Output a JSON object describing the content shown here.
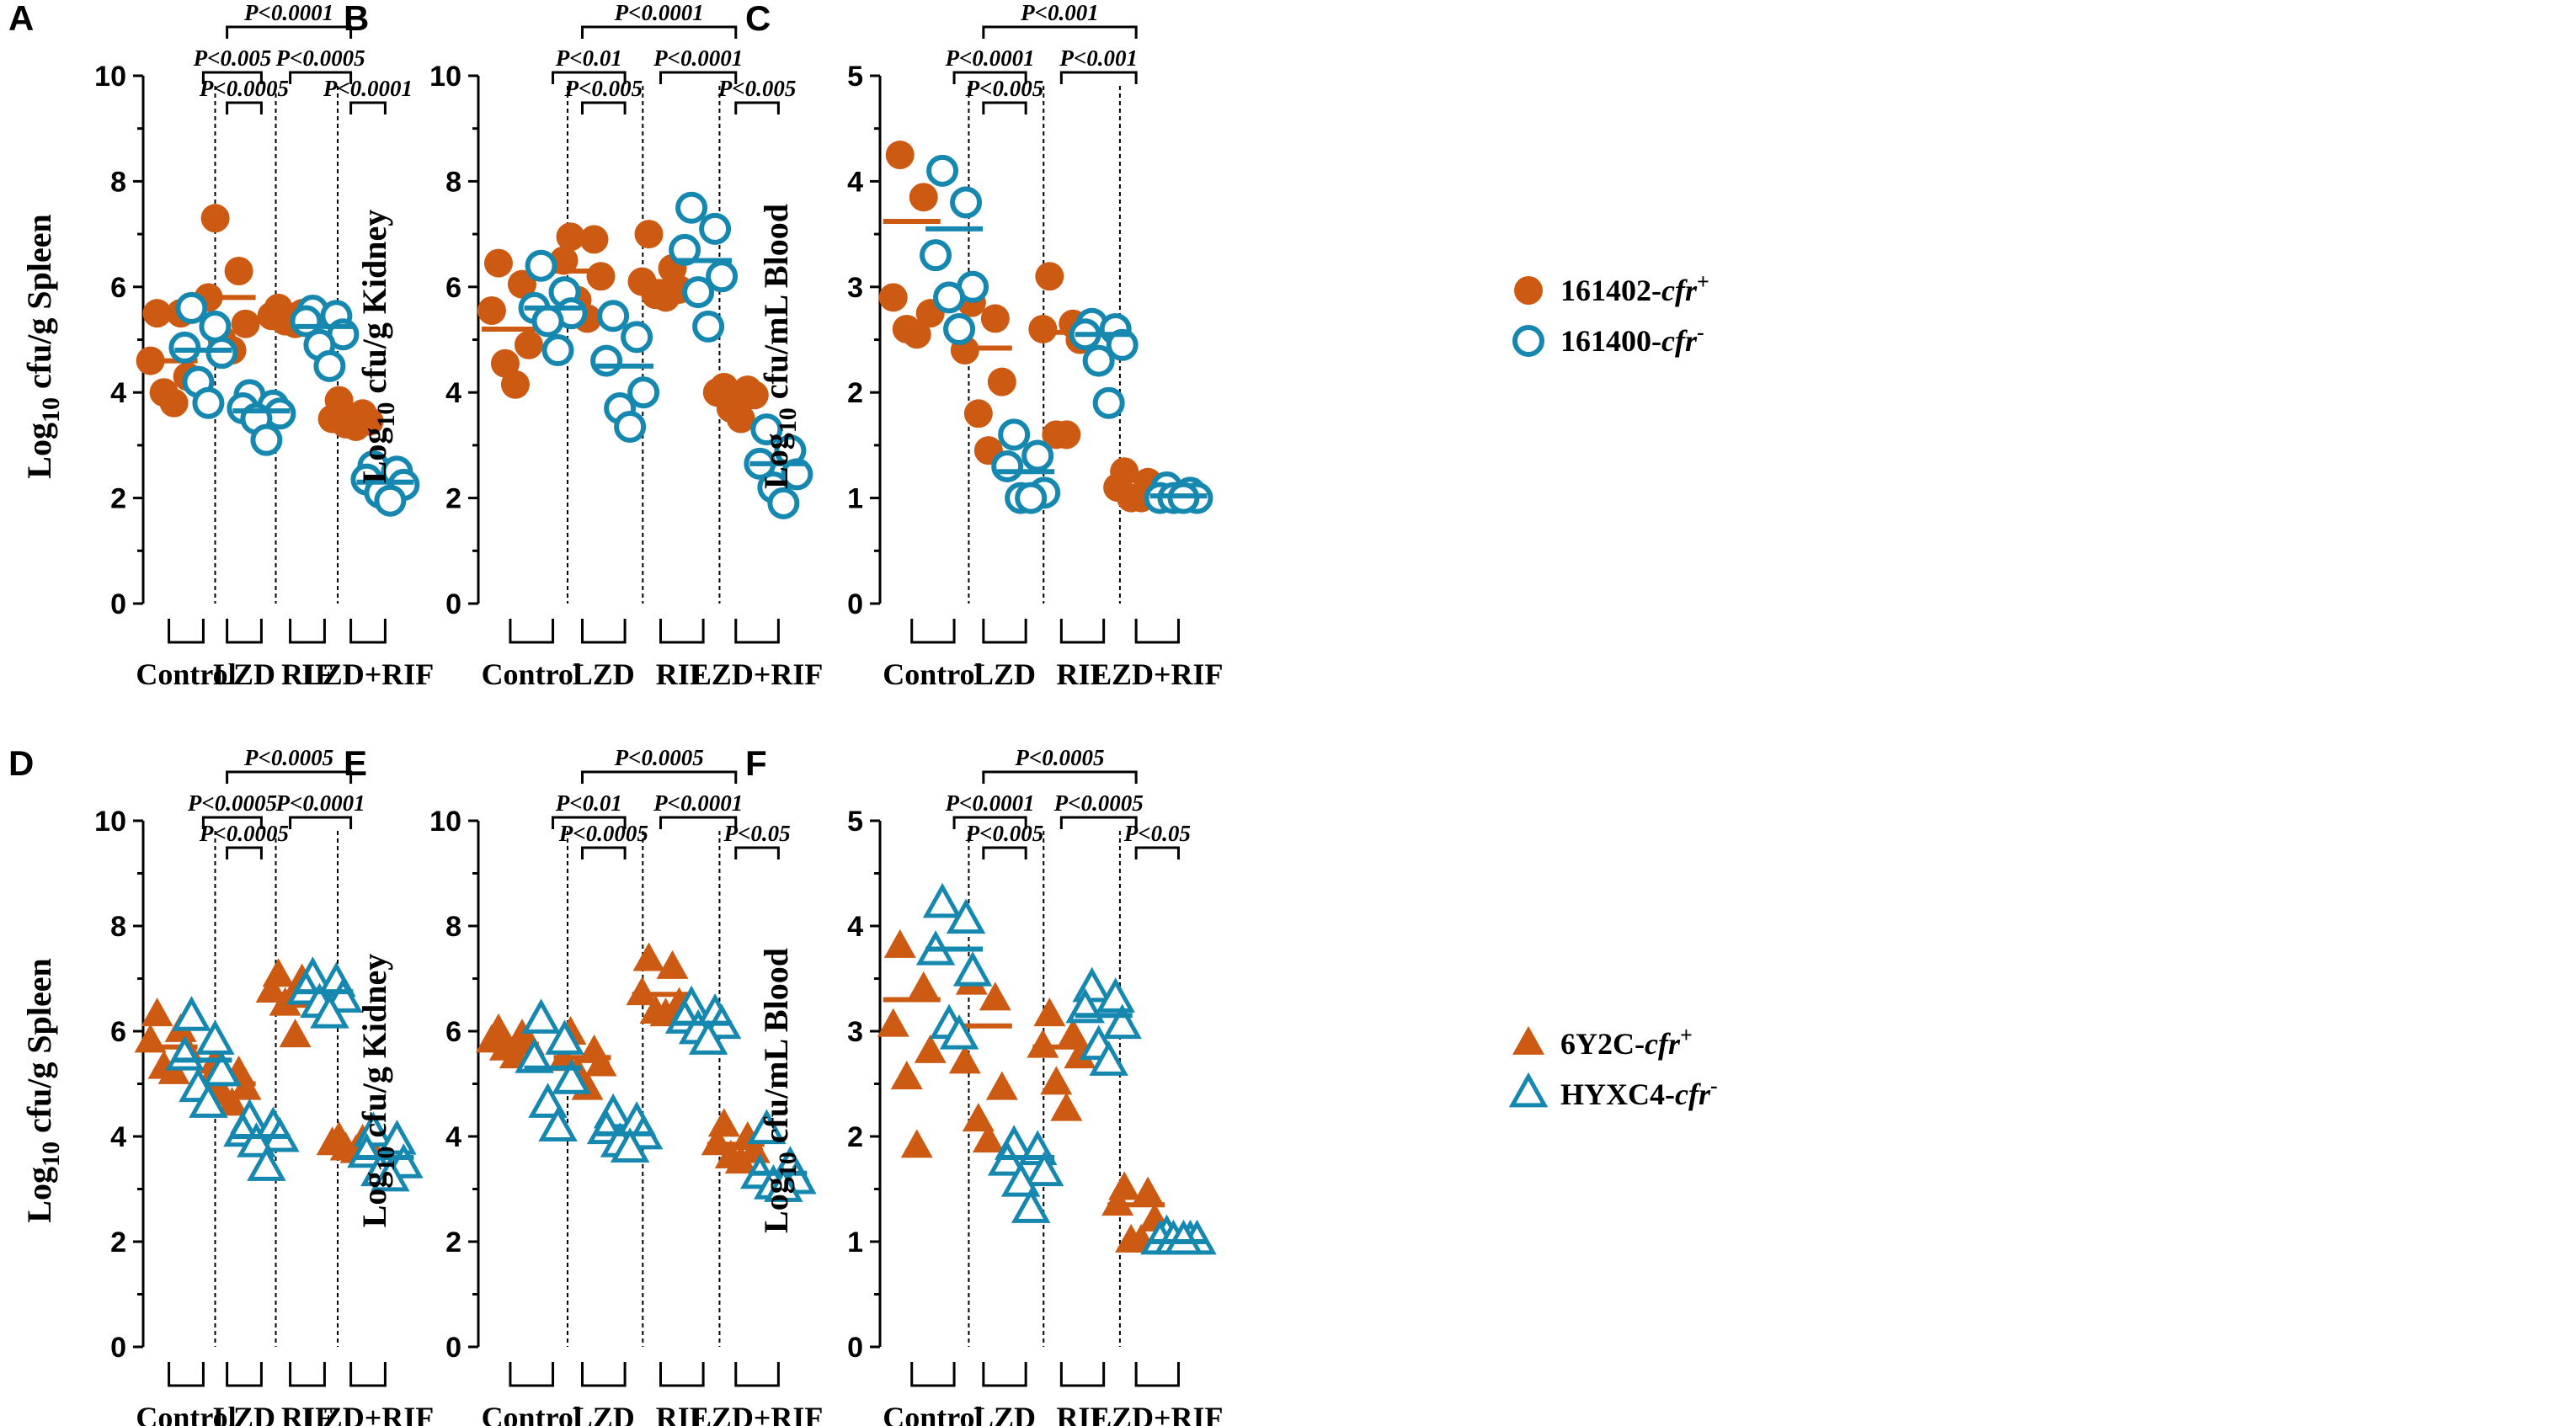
{
  "colors": {
    "cfr_pos": "#cc5a13",
    "cfr_neg": "#1688b0"
  },
  "legends": [
    {
      "marker": "circle",
      "items": [
        {
          "name": "161402-",
          "suffix": "cfr",
          "sup": "+",
          "color": "#cc5a13",
          "filled": true
        },
        {
          "name": "161400-",
          "suffix": "cfr",
          "sup": "-",
          "color": "#1688b0",
          "filled": false
        }
      ]
    },
    {
      "marker": "triangle",
      "items": [
        {
          "name": "6Y2C-",
          "suffix": "cfr",
          "sup": "+",
          "color": "#cc5a13",
          "filled": true
        },
        {
          "name": "HYXC4-",
          "suffix": "cfr",
          "sup": "-",
          "color": "#1688b0",
          "filled": false
        }
      ]
    }
  ],
  "chart_data": [
    {
      "panel": "A",
      "type": "scatter",
      "marker": "circle",
      "ylabel_pre": "Log",
      "ylabel_sub": "10",
      "ylabel_post": " cfu/g Spleen",
      "ylim": [
        0,
        10
      ],
      "yticks": [
        0,
        2,
        4,
        6,
        8,
        10
      ],
      "groups": [
        "Control",
        "LZD",
        "RIF",
        "LZD+RIF"
      ],
      "series": [
        {
          "name": "cfr+",
          "values": [
            [
              5.5,
              5.5,
              4.6,
              4.3,
              4.0,
              3.8
            ],
            [
              7.3,
              6.3,
              5.8,
              5.3,
              5.0,
              4.8
            ],
            [
              5.6,
              5.5,
              5.45,
              5.4,
              5.35,
              5.3
            ],
            [
              3.85,
              3.6,
              3.5,
              3.45,
              3.4,
              3.35
            ]
          ],
          "means": [
            4.6,
            5.8,
            5.45,
            3.5
          ]
        },
        {
          "name": "cfr-",
          "values": [
            [
              5.6,
              5.25,
              4.85,
              4.75,
              4.2,
              3.8
            ],
            [
              3.95,
              3.75,
              3.7,
              3.6,
              3.5,
              3.1
            ],
            [
              5.55,
              5.45,
              5.35,
              5.1,
              4.9,
              4.5
            ],
            [
              2.6,
              2.5,
              2.35,
              2.25,
              2.1,
              1.95
            ]
          ],
          "means": [
            4.8,
            3.65,
            5.25,
            2.3
          ]
        }
      ],
      "annotations": [
        {
          "g1": 0,
          "s1": 1,
          "g2": 1,
          "s2": 1,
          "text": "P<0.005"
        },
        {
          "g1": 1,
          "s1": 0,
          "g2": 1,
          "s2": 1,
          "text": "P<0.0005"
        },
        {
          "g1": 2,
          "s1": 0,
          "g2": 3,
          "s2": 0,
          "text": "P<0.0005"
        },
        {
          "g1": 3,
          "s1": 0,
          "g2": 3,
          "s2": 1,
          "text": "P<0.0001"
        },
        {
          "g1": 1,
          "s1": 0,
          "g2": 3,
          "s2": 0,
          "text": "P<0.0001"
        }
      ]
    },
    {
      "panel": "B",
      "type": "scatter",
      "marker": "circle",
      "ylabel_pre": "Log",
      "ylabel_sub": "10",
      "ylabel_post": " cfu/g Kidney",
      "ylim": [
        0,
        10
      ],
      "yticks": [
        0,
        2,
        4,
        6,
        8,
        10
      ],
      "groups": [
        "Control",
        "LZD",
        "RIF",
        "LZD+RIF"
      ],
      "series": [
        {
          "name": "cfr+",
          "values": [
            [
              6.45,
              6.05,
              5.55,
              4.9,
              4.55,
              4.15
            ],
            [
              6.95,
              6.9,
              6.5,
              6.2,
              5.75,
              5.4
            ],
            [
              7.0,
              6.35,
              6.1,
              5.95,
              5.85,
              5.8
            ],
            [
              4.1,
              4.05,
              4.0,
              3.95,
              3.7,
              3.5
            ]
          ],
          "means": [
            5.2,
            6.3,
            6.1,
            3.95
          ]
        },
        {
          "name": "cfr-",
          "values": [
            [
              6.4,
              5.9,
              5.6,
              5.5,
              5.35,
              4.8
            ],
            [
              5.45,
              5.05,
              4.6,
              4.0,
              3.7,
              3.35
            ],
            [
              7.5,
              7.1,
              6.7,
              6.2,
              5.9,
              5.25
            ],
            [
              3.3,
              2.9,
              2.65,
              2.45,
              2.2,
              1.9
            ]
          ],
          "means": [
            5.6,
            4.5,
            6.5,
            2.65
          ]
        }
      ],
      "annotations": [
        {
          "g1": 0,
          "s1": 1,
          "g2": 1,
          "s2": 1,
          "text": "P<0.01"
        },
        {
          "g1": 1,
          "s1": 0,
          "g2": 1,
          "s2": 1,
          "text": "P<0.005"
        },
        {
          "g1": 2,
          "s1": 0,
          "g2": 3,
          "s2": 0,
          "text": "P<0.0001"
        },
        {
          "g1": 3,
          "s1": 0,
          "g2": 3,
          "s2": 1,
          "text": "P<0.005"
        },
        {
          "g1": 1,
          "s1": 0,
          "g2": 3,
          "s2": 0,
          "text": "P<0.0001"
        }
      ]
    },
    {
      "panel": "C",
      "type": "scatter",
      "marker": "circle",
      "ylabel_pre": "Log",
      "ylabel_sub": "10",
      "ylabel_post": " cfu/mL Blood",
      "ylim": [
        0,
        5
      ],
      "yticks": [
        0,
        1,
        2,
        3,
        4,
        5
      ],
      "groups": [
        "Control",
        "LZD",
        "RIF",
        "LZD+RIF"
      ],
      "series": [
        {
          "name": "cfr+",
          "values": [
            [
              4.25,
              3.85,
              2.9,
              2.75,
              2.6,
              2.55
            ],
            [
              2.85,
              2.7,
              2.4,
              2.1,
              1.8,
              1.45
            ],
            [
              3.1,
              2.65,
              2.6,
              2.5,
              1.6,
              1.6
            ],
            [
              1.25,
              1.15,
              1.1,
              1.05,
              1.0,
              1.0
            ]
          ],
          "means": [
            3.62,
            2.42,
            2.57,
            1.1
          ]
        },
        {
          "name": "cfr-",
          "values": [
            [
              4.1,
              3.8,
              3.3,
              3.0,
              2.9,
              2.6
            ],
            [
              1.6,
              1.4,
              1.3,
              1.05,
              1.0,
              1.0
            ],
            [
              2.65,
              2.6,
              2.55,
              2.45,
              2.3,
              1.9
            ],
            [
              1.1,
              1.05,
              1.0,
              1.0,
              1.0,
              1.0
            ]
          ],
          "means": [
            3.55,
            1.25,
            2.55,
            1.02
          ]
        }
      ],
      "annotations": [
        {
          "g1": 0,
          "s1": 1,
          "g2": 1,
          "s2": 1,
          "text": "P<0.0001"
        },
        {
          "g1": 1,
          "s1": 0,
          "g2": 1,
          "s2": 1,
          "text": "P<0.005"
        },
        {
          "g1": 2,
          "s1": 0,
          "g2": 3,
          "s2": 0,
          "text": "P<0.001"
        },
        {
          "g1": 1,
          "s1": 0,
          "g2": 3,
          "s2": 0,
          "text": "P<0.001"
        }
      ]
    },
    {
      "panel": "D",
      "type": "scatter",
      "marker": "triangle",
      "ylabel_pre": "Log",
      "ylabel_sub": "10",
      "ylabel_post": " cfu/g Spleen",
      "ylim": [
        0,
        10
      ],
      "yticks": [
        0,
        2,
        4,
        6,
        8,
        10
      ],
      "groups": [
        "Control",
        "LZD",
        "RIF",
        "LZD+RIF"
      ],
      "series": [
        {
          "name": "cfr+",
          "values": [
            [
              6.3,
              6.0,
              5.8,
              5.6,
              5.3,
              5.2
            ],
            [
              5.4,
              5.2,
              5.0,
              4.9,
              4.8,
              4.6
            ],
            [
              7.05,
              6.95,
              6.75,
              6.65,
              6.5,
              5.9
            ],
            [
              3.95,
              3.9,
              3.85,
              3.8,
              3.75,
              3.7
            ]
          ],
          "means": [
            5.7,
            5.0,
            6.7,
            3.8
          ]
        },
        {
          "name": "cfr-",
          "values": [
            [
              6.25,
              5.8,
              5.5,
              5.2,
              4.9,
              4.6
            ],
            [
              4.3,
              4.15,
              4.05,
              3.95,
              3.85,
              3.4
            ],
            [
              7.0,
              6.9,
              6.75,
              6.6,
              6.5,
              6.3
            ],
            [
              4.05,
              3.9,
              3.65,
              3.45,
              3.3,
              3.2
            ]
          ],
          "means": [
            5.45,
            4.0,
            6.75,
            3.6
          ]
        }
      ],
      "annotations": [
        {
          "g1": 0,
          "s1": 1,
          "g2": 1,
          "s2": 1,
          "text": "P<0.0005"
        },
        {
          "g1": 1,
          "s1": 0,
          "g2": 1,
          "s2": 1,
          "text": "P<0.0005"
        },
        {
          "g1": 2,
          "s1": 0,
          "g2": 3,
          "s2": 0,
          "text": "P<0.0001"
        },
        {
          "g1": 1,
          "s1": 0,
          "g2": 3,
          "s2": 0,
          "text": "P<0.0005"
        }
      ]
    },
    {
      "panel": "E",
      "type": "scatter",
      "marker": "triangle",
      "ylabel_pre": "Log",
      "ylabel_sub": "10",
      "ylabel_post": " cfu/g Kidney",
      "ylim": [
        0,
        10
      ],
      "yticks": [
        0,
        2,
        4,
        6,
        8,
        10
      ],
      "groups": [
        "Control",
        "LZD",
        "RIF",
        "LZD+RIF"
      ],
      "series": [
        {
          "name": "cfr+",
          "values": [
            [
              6.0,
              5.9,
              5.8,
              5.75,
              5.65,
              5.5
            ],
            [
              5.95,
              5.6,
              5.45,
              5.35,
              5.2,
              4.9
            ],
            [
              7.35,
              7.2,
              6.7,
              6.5,
              6.35,
              6.3
            ],
            [
              4.2,
              3.95,
              3.85,
              3.7,
              3.6,
              3.5
            ]
          ],
          "means": [
            5.75,
            5.5,
            6.7,
            3.85
          ]
        },
        {
          "name": "cfr-",
          "values": [
            [
              6.2,
              5.8,
              5.45,
              5.05,
              4.6,
              4.15
            ],
            [
              4.4,
              4.25,
              4.1,
              4.0,
              3.85,
              3.75
            ],
            [
              6.45,
              6.3,
              6.2,
              6.1,
              6.0,
              5.8
            ],
            [
              4.1,
              3.4,
              3.25,
              3.15,
              3.05,
              3.0
            ]
          ],
          "means": [
            5.3,
            4.05,
            6.15,
            3.3
          ]
        }
      ],
      "annotations": [
        {
          "g1": 0,
          "s1": 1,
          "g2": 1,
          "s2": 1,
          "text": "P<0.01"
        },
        {
          "g1": 1,
          "s1": 0,
          "g2": 1,
          "s2": 1,
          "text": "P<0.0005"
        },
        {
          "g1": 2,
          "s1": 0,
          "g2": 3,
          "s2": 0,
          "text": "P<0.0001"
        },
        {
          "g1": 3,
          "s1": 0,
          "g2": 3,
          "s2": 1,
          "text": "P<0.05"
        },
        {
          "g1": 1,
          "s1": 0,
          "g2": 3,
          "s2": 0,
          "text": "P<0.0005"
        }
      ]
    },
    {
      "panel": "F",
      "type": "scatter",
      "marker": "triangle",
      "ylabel_pre": "Log",
      "ylabel_sub": "10",
      "ylabel_post": " cfu/mL Blood",
      "ylim": [
        0,
        5
      ],
      "yticks": [
        0,
        1,
        2,
        3,
        4,
        5
      ],
      "groups": [
        "Control",
        "LZD",
        "RIF",
        "LZD+RIF"
      ],
      "series": [
        {
          "name": "cfr+",
          "values": [
            [
              3.8,
              3.4,
              3.05,
              2.8,
              2.55,
              1.9
            ],
            [
              3.45,
              3.3,
              2.7,
              2.45,
              2.15,
              1.95
            ],
            [
              3.15,
              2.95,
              2.85,
              2.75,
              2.5,
              2.25
            ],
            [
              1.5,
              1.45,
              1.35,
              1.2,
              1.0,
              1.0
            ]
          ],
          "means": [
            3.3,
            3.05,
            2.85,
            1.35
          ]
        },
        {
          "name": "cfr-",
          "values": [
            [
              4.2,
              4.05,
              3.75,
              3.55,
              3.05,
              2.95
            ],
            [
              1.9,
              1.85,
              1.75,
              1.65,
              1.55,
              1.3
            ],
            [
              3.4,
              3.3,
              3.2,
              3.05,
              2.85,
              2.7
            ],
            [
              1.05,
              1.0,
              1.0,
              1.0,
              1.0,
              1.0
            ]
          ],
          "means": [
            3.78,
            1.8,
            3.15,
            1.0
          ]
        }
      ],
      "annotations": [
        {
          "g1": 0,
          "s1": 1,
          "g2": 1,
          "s2": 1,
          "text": "P<0.0001"
        },
        {
          "g1": 1,
          "s1": 0,
          "g2": 1,
          "s2": 1,
          "text": "P<0.005"
        },
        {
          "g1": 2,
          "s1": 0,
          "g2": 3,
          "s2": 0,
          "text": "P<0.0005"
        },
        {
          "g1": 3,
          "s1": 0,
          "g2": 3,
          "s2": 1,
          "text": "P<0.05"
        },
        {
          "g1": 1,
          "s1": 0,
          "g2": 3,
          "s2": 0,
          "text": "P<0.0005"
        }
      ]
    }
  ]
}
